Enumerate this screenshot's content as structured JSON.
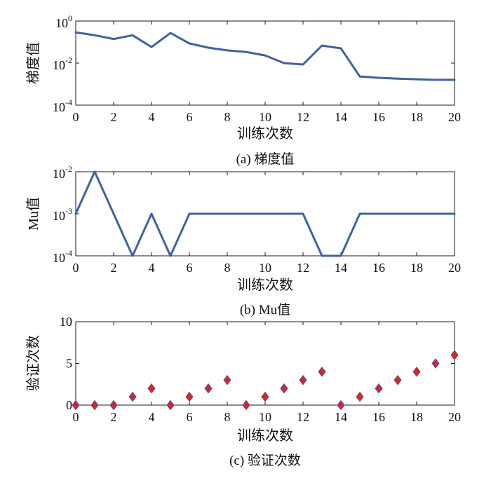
{
  "chart_data": [
    {
      "type": "line",
      "xlabel": "训练次数",
      "ylabel": "梯度值",
      "caption": "(a) 梯度值",
      "xlim": [
        0,
        20
      ],
      "ylim": [
        0.0001,
        1
      ],
      "yscale": "log",
      "grid": false,
      "xticks": [
        0,
        2,
        4,
        6,
        8,
        10,
        12,
        14,
        16,
        18,
        20
      ],
      "yticks": [
        {
          "value": 1,
          "base": "10",
          "exp": "0"
        },
        {
          "value": 0.01,
          "base": "10",
          "exp": "-2"
        },
        {
          "value": 0.0001,
          "base": "10",
          "exp": "-4"
        }
      ],
      "x": [
        0,
        1,
        2,
        3,
        4,
        5,
        6,
        7,
        8,
        9,
        10,
        11,
        12,
        13,
        14,
        15,
        16,
        17,
        18,
        19,
        20
      ],
      "series": [
        {
          "values": [
            0.29,
            0.21,
            0.14,
            0.21,
            0.058,
            0.27,
            0.086,
            0.054,
            0.04,
            0.034,
            0.023,
            0.01,
            0.0086,
            0.068,
            0.05,
            0.0023,
            0.002,
            0.0018,
            0.0017,
            0.0016,
            0.0016
          ],
          "color": "#3f62a3"
        }
      ]
    },
    {
      "type": "line",
      "xlabel": "训练次数",
      "ylabel": "Mu值",
      "caption": "(b) Mu值",
      "xlim": [
        0,
        20
      ],
      "ylim": [
        0.0001,
        0.01
      ],
      "yscale": "log",
      "grid": false,
      "xticks": [
        0,
        2,
        4,
        6,
        8,
        10,
        12,
        14,
        16,
        18,
        20
      ],
      "yticks": [
        {
          "value": 0.01,
          "base": "10",
          "exp": "-2"
        },
        {
          "value": 0.001,
          "base": "10",
          "exp": "-3"
        },
        {
          "value": 0.0001,
          "base": "10",
          "exp": "-4"
        }
      ],
      "x": [
        0,
        1,
        2,
        3,
        4,
        5,
        6,
        7,
        8,
        9,
        10,
        11,
        12,
        13,
        14,
        15,
        16,
        17,
        18,
        19,
        20
      ],
      "series": [
        {
          "values": [
            0.001,
            0.01,
            0.001,
            0.0001,
            0.001,
            0.0001,
            0.001,
            0.001,
            0.001,
            0.001,
            0.001,
            0.001,
            0.001,
            0.0001,
            0.0001,
            0.001,
            0.001,
            0.001,
            0.001,
            0.001,
            0.001
          ],
          "color": "#3f62a3"
        }
      ]
    },
    {
      "type": "scatter",
      "xlabel": "训练次数",
      "ylabel": "验证次数",
      "caption": "(c) 验证次数",
      "xlim": [
        0,
        20
      ],
      "ylim": [
        0,
        10
      ],
      "yscale": "linear",
      "grid": false,
      "xticks": [
        0,
        2,
        4,
        6,
        8,
        10,
        12,
        14,
        16,
        18,
        20
      ],
      "yticks": [
        {
          "value": 0,
          "label": "0"
        },
        {
          "value": 5,
          "label": "5"
        },
        {
          "value": 10,
          "label": "10"
        }
      ],
      "x": [
        0,
        1,
        2,
        3,
        4,
        5,
        6,
        7,
        8,
        9,
        10,
        11,
        12,
        13,
        14,
        15,
        16,
        17,
        18,
        19,
        20
      ],
      "series": [
        {
          "values": [
            0,
            0,
            0,
            1,
            2,
            0,
            1,
            2,
            3,
            0,
            1,
            2,
            3,
            4,
            0,
            1,
            2,
            3,
            4,
            5,
            6
          ],
          "marker": "diamond",
          "color": "#e11f26",
          "edge_color": "#4b5a95"
        }
      ]
    }
  ]
}
